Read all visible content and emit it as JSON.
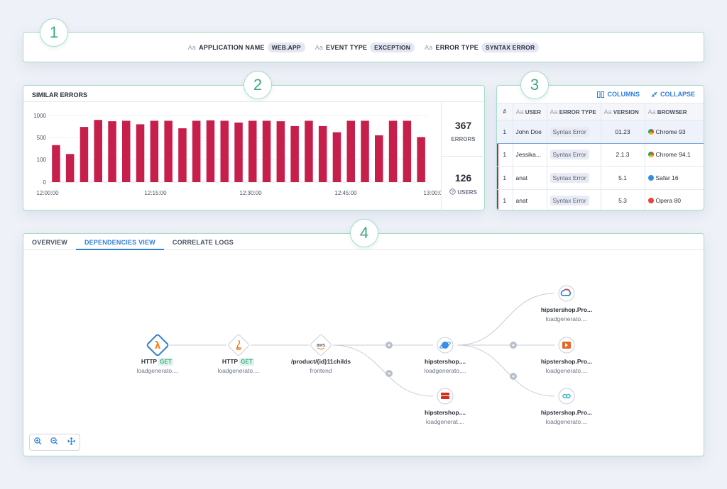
{
  "callouts": [
    "1",
    "2",
    "3",
    "4"
  ],
  "filters": [
    {
      "label": "APPLICATION NAME",
      "value": "WEB.APP"
    },
    {
      "label": "EVENT TYPE",
      "value": "EXCEPTION"
    },
    {
      "label": "ERROR TYPE",
      "value": "SYNTAX ERROR"
    }
  ],
  "type_icon": "Aa",
  "similar_errors": {
    "title": "SIMILAR ERRORS",
    "stats": [
      {
        "value": "367",
        "label": "ERRORS"
      },
      {
        "value": "126",
        "label": "USERS",
        "icon": "question-circle-icon"
      }
    ]
  },
  "chart_data": {
    "type": "bar",
    "y_ticks": [
      "1000",
      "500",
      "100",
      "0"
    ],
    "x_ticks": [
      "12:00:00",
      "12:15:00",
      "12:30:00",
      "12:45:00",
      "13:00:00"
    ],
    "values": [
      360,
      200,
      740,
      900,
      870,
      880,
      800,
      880,
      880,
      710,
      880,
      890,
      880,
      840,
      880,
      880,
      870,
      760,
      880,
      760,
      620,
      880,
      880,
      550,
      880,
      880,
      510
    ],
    "ylim": [
      0,
      1000
    ],
    "bar_color": "#c71f4c",
    "grid": true
  },
  "table": {
    "actions": [
      {
        "label": "COLUMNS",
        "icon": "columns-icon"
      },
      {
        "label": "COLLAPSE",
        "icon": "collapse-icon"
      }
    ],
    "columns": [
      "#",
      "USER",
      "ERROR TYPE",
      "VERSION",
      "BROWSER"
    ],
    "rows": [
      {
        "count": "1",
        "user": "John Doe",
        "error": "Syntax Error",
        "version": "01.23",
        "browser": "Chrome 93",
        "browser_icon": "chrome-icon",
        "color": "#e8453c"
      },
      {
        "count": "1",
        "user": "Jessika...",
        "error": "Syntax Error",
        "version": "2.1.3",
        "browser": "Chrome 94.1",
        "browser_icon": "chrome-icon",
        "color": "#e8453c"
      },
      {
        "count": "1",
        "user": "anat",
        "error": "Syntax Error",
        "version": "5.1",
        "browser": "Safar 16",
        "browser_icon": "safari-icon",
        "color": "#2f8fe0"
      },
      {
        "count": "1",
        "user": "anat",
        "error": "Syntax Error",
        "version": "5.3",
        "browser": "Opera 80",
        "browser_icon": "opera-icon",
        "color": "#e8453c"
      }
    ]
  },
  "tabs": [
    {
      "label": "OVERVIEW",
      "active": false
    },
    {
      "label": "DEPENDENCIES VIEW",
      "active": true
    },
    {
      "label": "CORRELATE LOGS",
      "active": false
    }
  ],
  "graph": {
    "nodes": [
      {
        "id": "n1",
        "title": "HTTP",
        "method": "GET",
        "sub": "loadgenerato....",
        "icon": "lambda-icon"
      },
      {
        "id": "n2",
        "title": "HTTP",
        "method": "GET",
        "sub": "loadgenerato....",
        "icon": "java-icon"
      },
      {
        "id": "n3",
        "title": "/product/{id}11childs",
        "sub": "frontend",
        "icon": "aws-icon",
        "icon_text": "aws"
      },
      {
        "id": "n4",
        "title": "hipstershop....",
        "sub": "loadgenerato....",
        "icon": "planet-icon"
      },
      {
        "id": "n5",
        "title": "hipstershop....",
        "sub": "loadgenerat....",
        "icon": "redis-icon"
      },
      {
        "id": "n6",
        "title": "hipstershop.Pro...",
        "sub": "loadgenerato....",
        "icon": "gcp-icon"
      },
      {
        "id": "n7",
        "title": "hipstershop.Pro...",
        "sub": "loadgenerato....",
        "icon": "service-icon"
      },
      {
        "id": "n8",
        "title": "hipstershop.Pro...",
        "sub": "loadgenerato....",
        "icon": "link-icon"
      }
    ]
  },
  "zoom_controls": [
    "zoom-in-icon",
    "zoom-out-icon",
    "move-icon"
  ]
}
